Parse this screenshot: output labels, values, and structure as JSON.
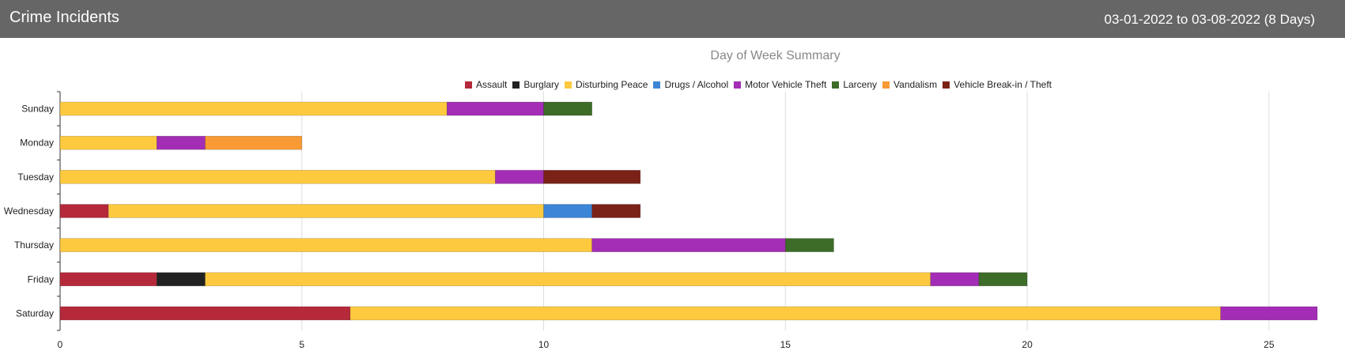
{
  "header": {
    "title": "Crime Incidents",
    "date_range": "03-01-2022 to 03-08-2022 (8 Days)"
  },
  "chart_data": {
    "type": "bar",
    "orientation": "horizontal",
    "stacked": true,
    "title": "Day of Week Summary",
    "categories": [
      "Sunday",
      "Monday",
      "Tuesday",
      "Wednesday",
      "Thursday",
      "Friday",
      "Saturday"
    ],
    "series": [
      {
        "name": "Assault",
        "color": "#b5293a",
        "values": [
          0,
          0,
          0,
          1,
          0,
          2,
          6
        ]
      },
      {
        "name": "Burglary",
        "color": "#222222",
        "values": [
          0,
          0,
          0,
          0,
          0,
          1,
          0
        ]
      },
      {
        "name": "Disturbing Peace",
        "color": "#fdc93f",
        "values": [
          8,
          2,
          9,
          9,
          11,
          15,
          18
        ]
      },
      {
        "name": "Drugs / Alcohol",
        "color": "#3d85d6",
        "values": [
          0,
          0,
          0,
          1,
          0,
          0,
          0
        ]
      },
      {
        "name": "Motor Vehicle Theft",
        "color": "#a32db5",
        "values": [
          2,
          1,
          1,
          0,
          4,
          1,
          2
        ]
      },
      {
        "name": "Larceny",
        "color": "#3d6b28",
        "values": [
          1,
          0,
          0,
          0,
          1,
          1,
          0
        ]
      },
      {
        "name": "Vandalism",
        "color": "#f99a34",
        "values": [
          0,
          2,
          0,
          0,
          0,
          0,
          0
        ]
      },
      {
        "name": "Vehicle Break-in / Theft",
        "color": "#7a2118",
        "values": [
          0,
          0,
          2,
          1,
          0,
          0,
          0
        ]
      }
    ],
    "xlim": [
      0,
      26
    ],
    "xticks": [
      0,
      5,
      10,
      15,
      20,
      25
    ],
    "grid": true,
    "legend_position": "top-center"
  }
}
